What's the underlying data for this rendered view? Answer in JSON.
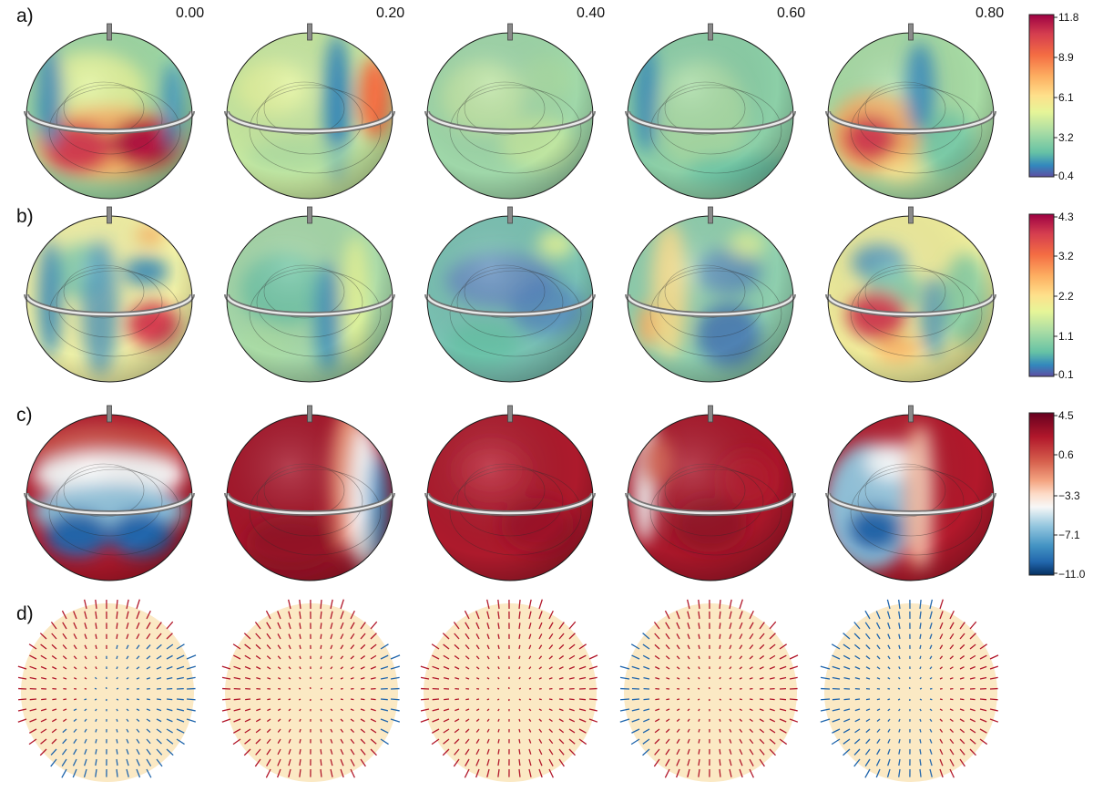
{
  "phases": [
    "0.00",
    "0.20",
    "0.40",
    "0.60",
    "0.80"
  ],
  "rows": [
    {
      "label": "a)",
      "colorbar": [
        "11.8",
        "8.9",
        "6.1",
        "3.2",
        "0.4"
      ]
    },
    {
      "label": "b)",
      "colorbar": [
        "4.3",
        "3.2",
        "2.2",
        "1.1",
        "0.1"
      ]
    },
    {
      "label": "c)",
      "colorbar": [
        "4.5",
        "0.6",
        "−3.3",
        "−7.1",
        "−11.0"
      ]
    },
    {
      "label": "d)"
    }
  ],
  "colors": {
    "spectral_low": "#3d4fa1",
    "spectral_mid": "#e6f598",
    "spectral_high": "#9e0142",
    "rdbu_low": "#053061",
    "rdbu_mid": "#f7f7f7",
    "rdbu_high": "#67001f",
    "vector_positive": "#b2182b",
    "vector_negative": "#2166ac",
    "vector_sphere": "#fbe9c4"
  }
}
